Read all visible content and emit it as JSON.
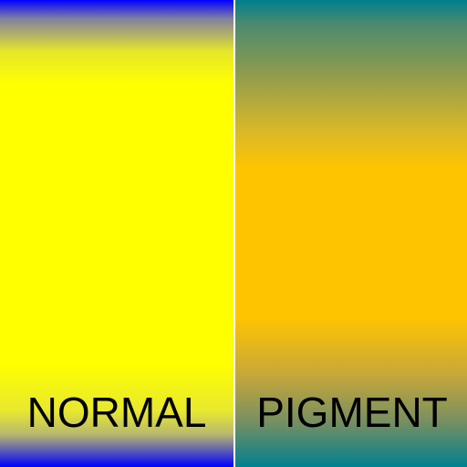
{
  "panels": {
    "normal": {
      "label": "NORMAL",
      "colors": {
        "edge": "#0000ff",
        "center": "#ffff00"
      }
    },
    "pigment": {
      "label": "PIGMENT",
      "colors": {
        "edge": "#007f8c",
        "center": "#ffc400"
      }
    }
  }
}
